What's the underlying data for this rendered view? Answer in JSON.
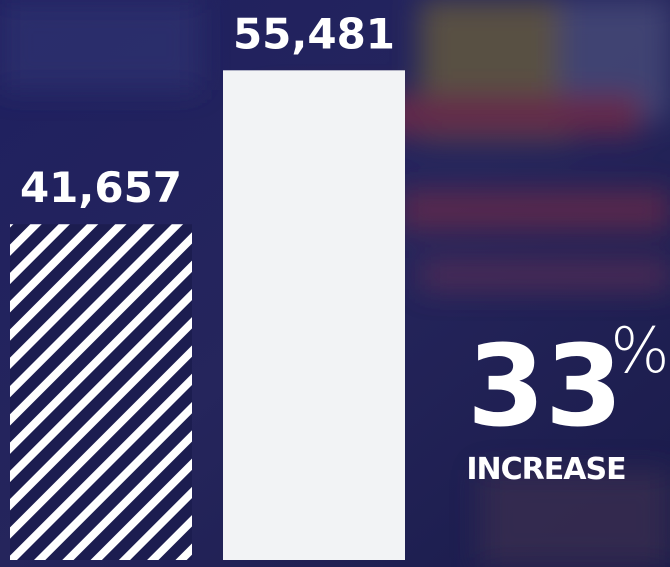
{
  "chart_data": {
    "type": "bar",
    "categories": [
      null,
      null
    ],
    "values": [
      41657,
      55481
    ],
    "value_labels": [
      "41,657",
      "55,481"
    ],
    "bar_styles": [
      "hatched",
      "solid"
    ],
    "color": "#f2f3f5",
    "ylim": [
      11500,
      60000
    ],
    "annotation": {
      "value": "33",
      "unit": "%",
      "label": "INCREASE"
    }
  }
}
